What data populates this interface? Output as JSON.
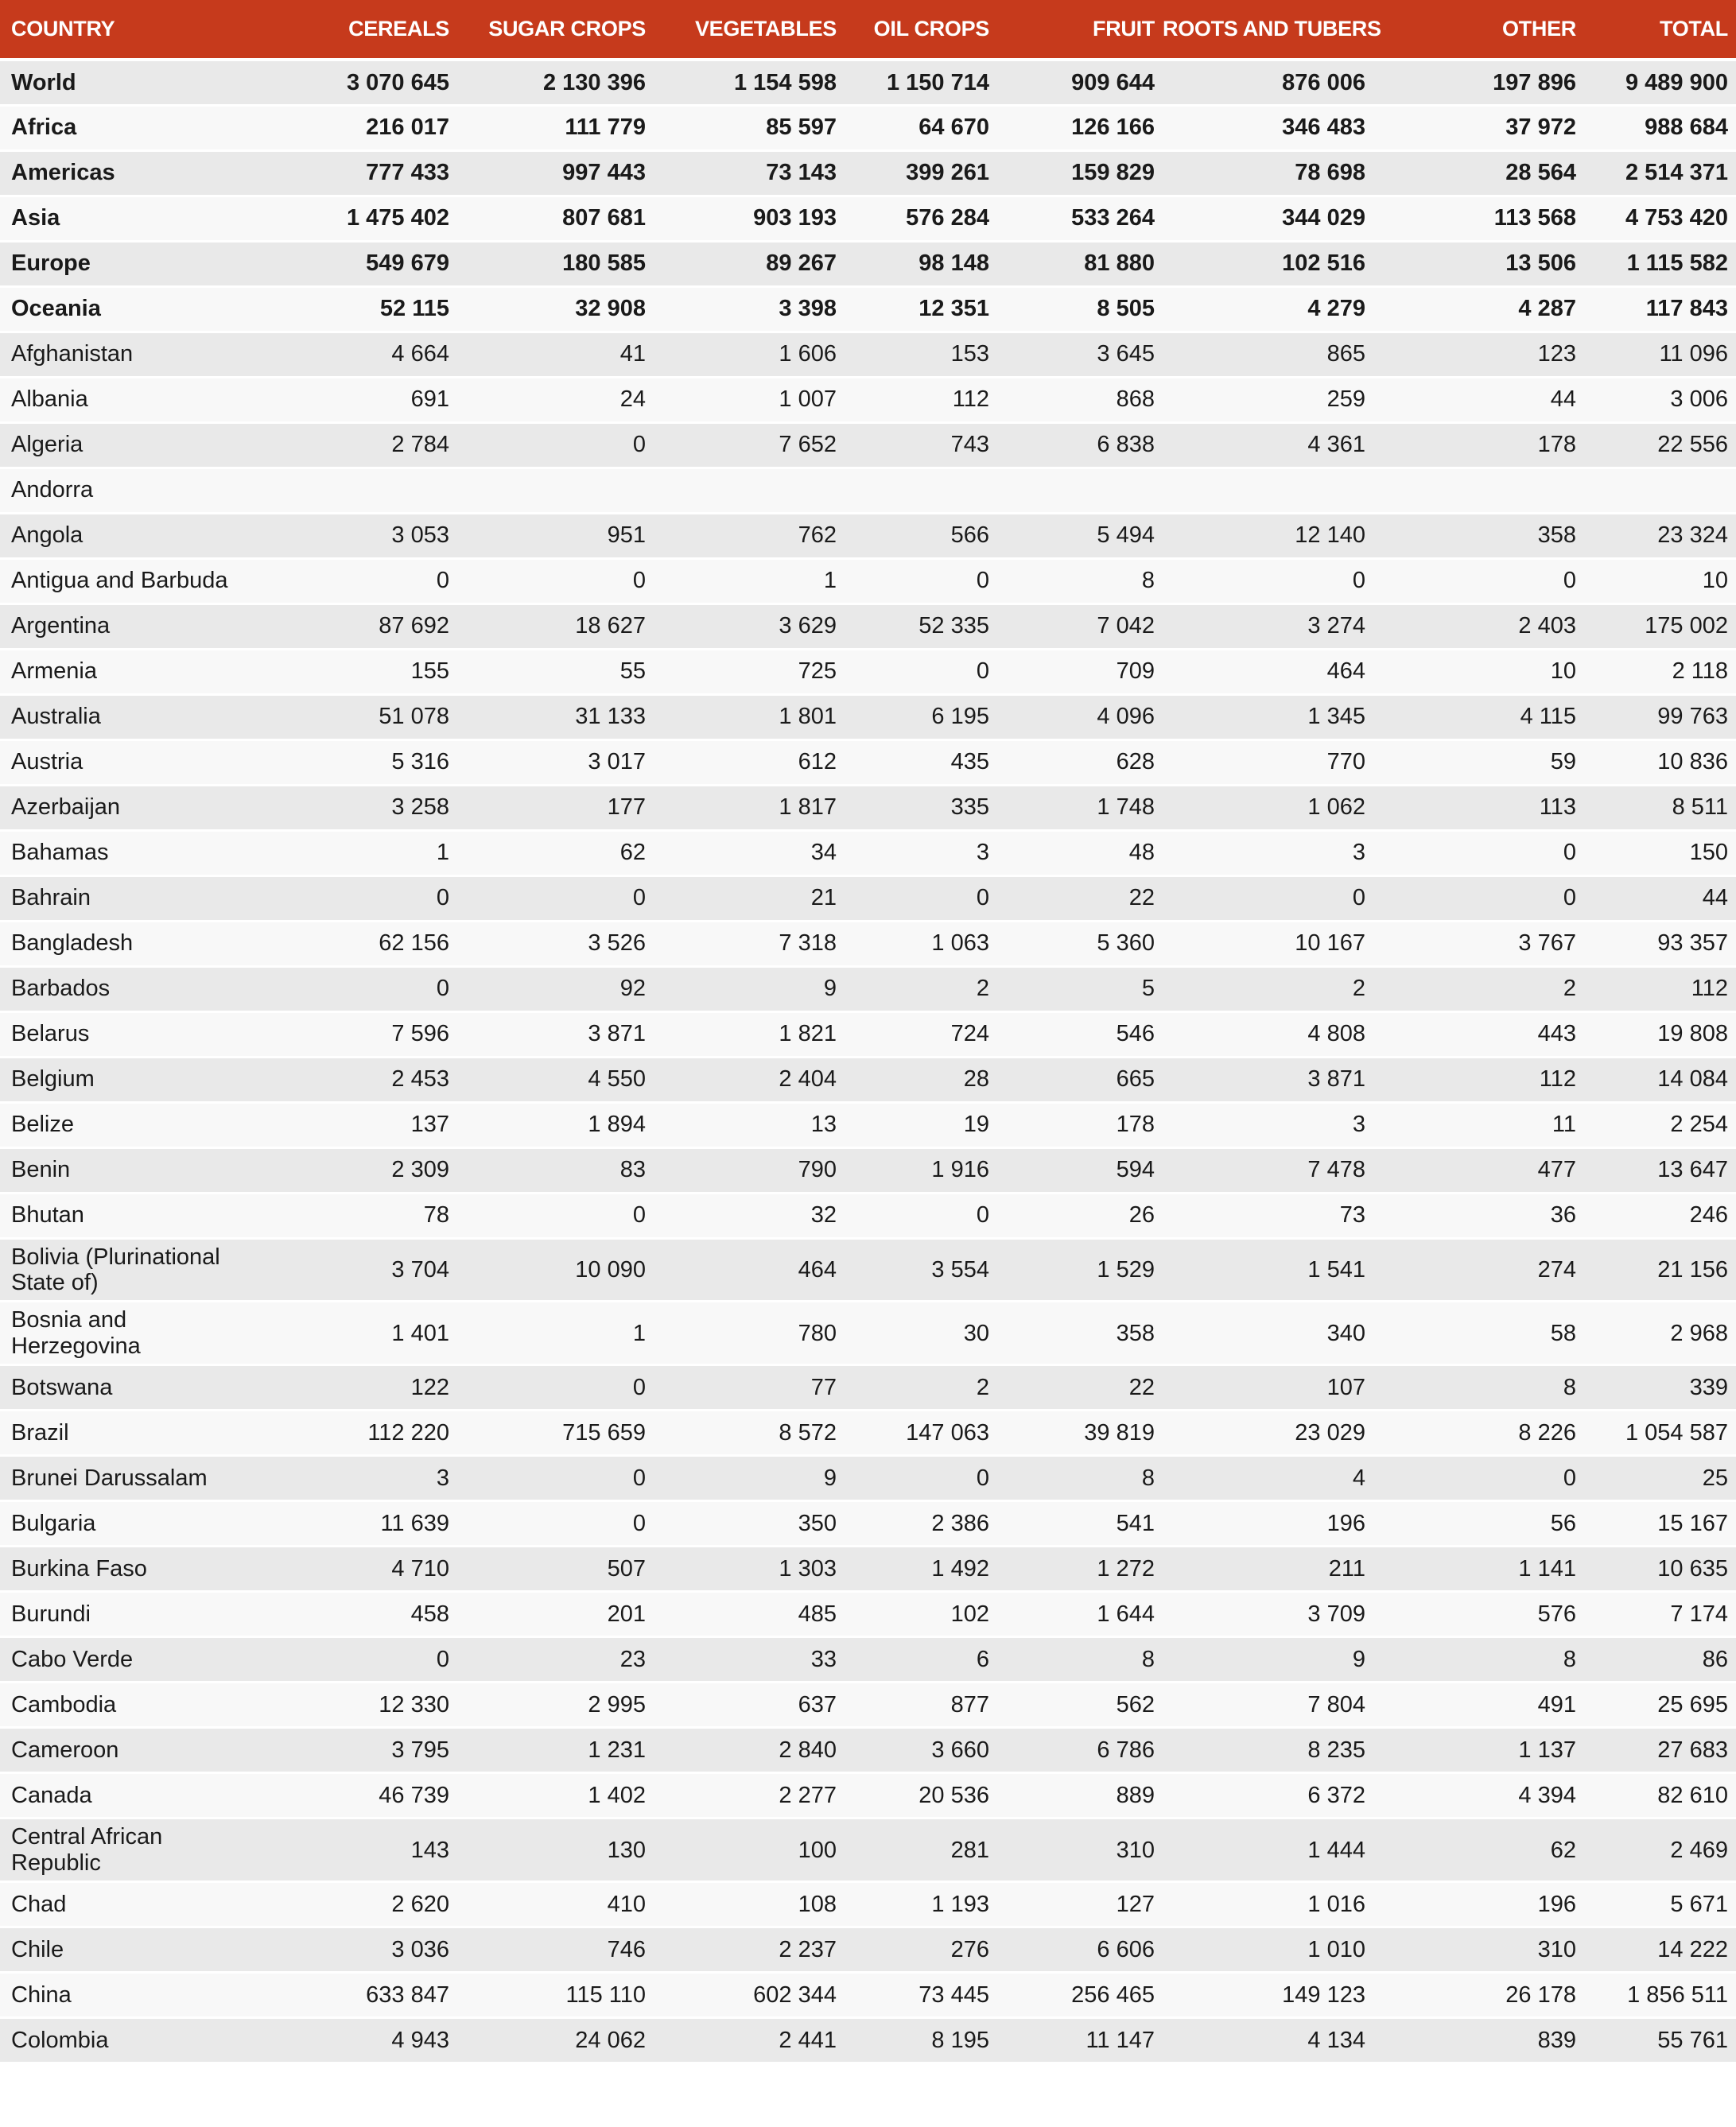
{
  "colors": {
    "header_bg": "#C63A1C",
    "header_text": "#FFFFFF",
    "row_odd": "#E9E9E9",
    "row_even": "#F8F8F8",
    "text": "#1A1A1A"
  },
  "table": {
    "headers": [
      "COUNTRY",
      "CEREALS",
      "SUGAR CROPS",
      "VEGETABLES",
      "OIL CROPS",
      "FRUIT",
      "ROOTS AND TUBERS",
      "OTHER",
      "TOTAL"
    ],
    "rows": [
      {
        "country": "World",
        "bold": true,
        "values": [
          "3 070 645",
          "2 130 396",
          "1 154 598",
          "1 150 714",
          "909 644",
          "876 006",
          "197 896",
          "9 489 900"
        ]
      },
      {
        "country": "Africa",
        "bold": true,
        "values": [
          "216 017",
          "111 779",
          "85 597",
          "64 670",
          "126 166",
          "346 483",
          "37 972",
          "988 684"
        ]
      },
      {
        "country": "Americas",
        "bold": true,
        "values": [
          "777 433",
          "997 443",
          "73 143",
          "399 261",
          "159 829",
          "78 698",
          "28 564",
          "2 514 371"
        ]
      },
      {
        "country": "Asia",
        "bold": true,
        "values": [
          "1 475 402",
          "807 681",
          "903 193",
          "576 284",
          "533 264",
          "344 029",
          "113 568",
          "4 753 420"
        ]
      },
      {
        "country": "Europe",
        "bold": true,
        "values": [
          "549 679",
          "180 585",
          "89 267",
          "98 148",
          "81 880",
          "102 516",
          "13 506",
          "1 115 582"
        ]
      },
      {
        "country": "Oceania",
        "bold": true,
        "values": [
          "52 115",
          "32 908",
          "3 398",
          "12 351",
          "8 505",
          "4 279",
          "4 287",
          "117 843"
        ]
      },
      {
        "country": "Afghanistan",
        "bold": false,
        "values": [
          "4 664",
          "41",
          "1 606",
          "153",
          "3 645",
          "865",
          "123",
          "11 096"
        ]
      },
      {
        "country": "Albania",
        "bold": false,
        "values": [
          "691",
          "24",
          "1 007",
          "112",
          "868",
          "259",
          "44",
          "3 006"
        ]
      },
      {
        "country": "Algeria",
        "bold": false,
        "values": [
          "2 784",
          "0",
          "7 652",
          "743",
          "6 838",
          "4 361",
          "178",
          "22 556"
        ]
      },
      {
        "country": "Andorra",
        "bold": false,
        "values": [
          "",
          "",
          "",
          "",
          "",
          "",
          "",
          ""
        ]
      },
      {
        "country": "Angola",
        "bold": false,
        "values": [
          "3 053",
          "951",
          "762",
          "566",
          "5 494",
          "12 140",
          "358",
          "23 324"
        ]
      },
      {
        "country": "Antigua and Barbuda",
        "bold": false,
        "values": [
          "0",
          "0",
          "1",
          "0",
          "8",
          "0",
          "0",
          "10"
        ]
      },
      {
        "country": "Argentina",
        "bold": false,
        "values": [
          "87 692",
          "18 627",
          "3 629",
          "52 335",
          "7 042",
          "3 274",
          "2 403",
          "175 002"
        ]
      },
      {
        "country": "Armenia",
        "bold": false,
        "values": [
          "155",
          "55",
          "725",
          "0",
          "709",
          "464",
          "10",
          "2 118"
        ]
      },
      {
        "country": "Australia",
        "bold": false,
        "values": [
          "51 078",
          "31 133",
          "1 801",
          "6 195",
          "4 096",
          "1 345",
          "4 115",
          "99 763"
        ]
      },
      {
        "country": "Austria",
        "bold": false,
        "values": [
          "5 316",
          "3 017",
          "612",
          "435",
          "628",
          "770",
          "59",
          "10 836"
        ]
      },
      {
        "country": "Azerbaijan",
        "bold": false,
        "values": [
          "3 258",
          "177",
          "1 817",
          "335",
          "1 748",
          "1 062",
          "113",
          "8 511"
        ]
      },
      {
        "country": "Bahamas",
        "bold": false,
        "values": [
          "1",
          "62",
          "34",
          "3",
          "48",
          "3",
          "0",
          "150"
        ]
      },
      {
        "country": "Bahrain",
        "bold": false,
        "values": [
          "0",
          "0",
          "21",
          "0",
          "22",
          "0",
          "0",
          "44"
        ]
      },
      {
        "country": "Bangladesh",
        "bold": false,
        "values": [
          "62 156",
          "3 526",
          "7 318",
          "1 063",
          "5 360",
          "10 167",
          "3 767",
          "93 357"
        ]
      },
      {
        "country": "Barbados",
        "bold": false,
        "values": [
          "0",
          "92",
          "9",
          "2",
          "5",
          "2",
          "2",
          "112"
        ]
      },
      {
        "country": "Belarus",
        "bold": false,
        "values": [
          "7 596",
          "3 871",
          "1 821",
          "724",
          "546",
          "4 808",
          "443",
          "19 808"
        ]
      },
      {
        "country": "Belgium",
        "bold": false,
        "values": [
          "2 453",
          "4 550",
          "2 404",
          "28",
          "665",
          "3 871",
          "112",
          "14 084"
        ]
      },
      {
        "country": "Belize",
        "bold": false,
        "values": [
          "137",
          "1 894",
          "13",
          "19",
          "178",
          "3",
          "11",
          "2 254"
        ]
      },
      {
        "country": "Benin",
        "bold": false,
        "values": [
          "2 309",
          "83",
          "790",
          "1 916",
          "594",
          "7 478",
          "477",
          "13 647"
        ]
      },
      {
        "country": "Bhutan",
        "bold": false,
        "values": [
          "78",
          "0",
          "32",
          "0",
          "26",
          "73",
          "36",
          "246"
        ]
      },
      {
        "country": "Bolivia (Plurinational State of)",
        "bold": false,
        "values": [
          "3 704",
          "10 090",
          "464",
          "3 554",
          "1 529",
          "1 541",
          "274",
          "21 156"
        ]
      },
      {
        "country": "Bosnia and Herzegovina",
        "bold": false,
        "values": [
          "1 401",
          "1",
          "780",
          "30",
          "358",
          "340",
          "58",
          "2 968"
        ]
      },
      {
        "country": "Botswana",
        "bold": false,
        "values": [
          "122",
          "0",
          "77",
          "2",
          "22",
          "107",
          "8",
          "339"
        ]
      },
      {
        "country": "Brazil",
        "bold": false,
        "values": [
          "112 220",
          "715 659",
          "8 572",
          "147 063",
          "39 819",
          "23 029",
          "8 226",
          "1 054 587"
        ]
      },
      {
        "country": "Brunei Darussalam",
        "bold": false,
        "values": [
          "3",
          "0",
          "9",
          "0",
          "8",
          "4",
          "0",
          "25"
        ]
      },
      {
        "country": "Bulgaria",
        "bold": false,
        "values": [
          "11 639",
          "0",
          "350",
          "2 386",
          "541",
          "196",
          "56",
          "15 167"
        ]
      },
      {
        "country": "Burkina Faso",
        "bold": false,
        "values": [
          "4 710",
          "507",
          "1 303",
          "1 492",
          "1 272",
          "211",
          "1 141",
          "10 635"
        ]
      },
      {
        "country": "Burundi",
        "bold": false,
        "values": [
          "458",
          "201",
          "485",
          "102",
          "1 644",
          "3 709",
          "576",
          "7 174"
        ]
      },
      {
        "country": "Cabo Verde",
        "bold": false,
        "values": [
          "0",
          "23",
          "33",
          "6",
          "8",
          "9",
          "8",
          "86"
        ]
      },
      {
        "country": "Cambodia",
        "bold": false,
        "values": [
          "12 330",
          "2 995",
          "637",
          "877",
          "562",
          "7 804",
          "491",
          "25 695"
        ]
      },
      {
        "country": "Cameroon",
        "bold": false,
        "values": [
          "3 795",
          "1 231",
          "2 840",
          "3 660",
          "6 786",
          "8 235",
          "1 137",
          "27 683"
        ]
      },
      {
        "country": "Canada",
        "bold": false,
        "values": [
          "46 739",
          "1 402",
          "2 277",
          "20 536",
          "889",
          "6 372",
          "4 394",
          "82 610"
        ]
      },
      {
        "country": "Central African Republic",
        "bold": false,
        "values": [
          "143",
          "130",
          "100",
          "281",
          "310",
          "1 444",
          "62",
          "2 469"
        ]
      },
      {
        "country": "Chad",
        "bold": false,
        "values": [
          "2 620",
          "410",
          "108",
          "1 193",
          "127",
          "1 016",
          "196",
          "5 671"
        ]
      },
      {
        "country": "Chile",
        "bold": false,
        "values": [
          "3 036",
          "746",
          "2 237",
          "276",
          "6 606",
          "1 010",
          "310",
          "14 222"
        ]
      },
      {
        "country": "China",
        "bold": false,
        "values": [
          "633 847",
          "115 110",
          "602 344",
          "73 445",
          "256 465",
          "149 123",
          "26 178",
          "1 856 511"
        ]
      },
      {
        "country": "Colombia",
        "bold": false,
        "values": [
          "4 943",
          "24 062",
          "2 441",
          "8 195",
          "11 147",
          "4 134",
          "839",
          "55 761"
        ]
      }
    ]
  }
}
